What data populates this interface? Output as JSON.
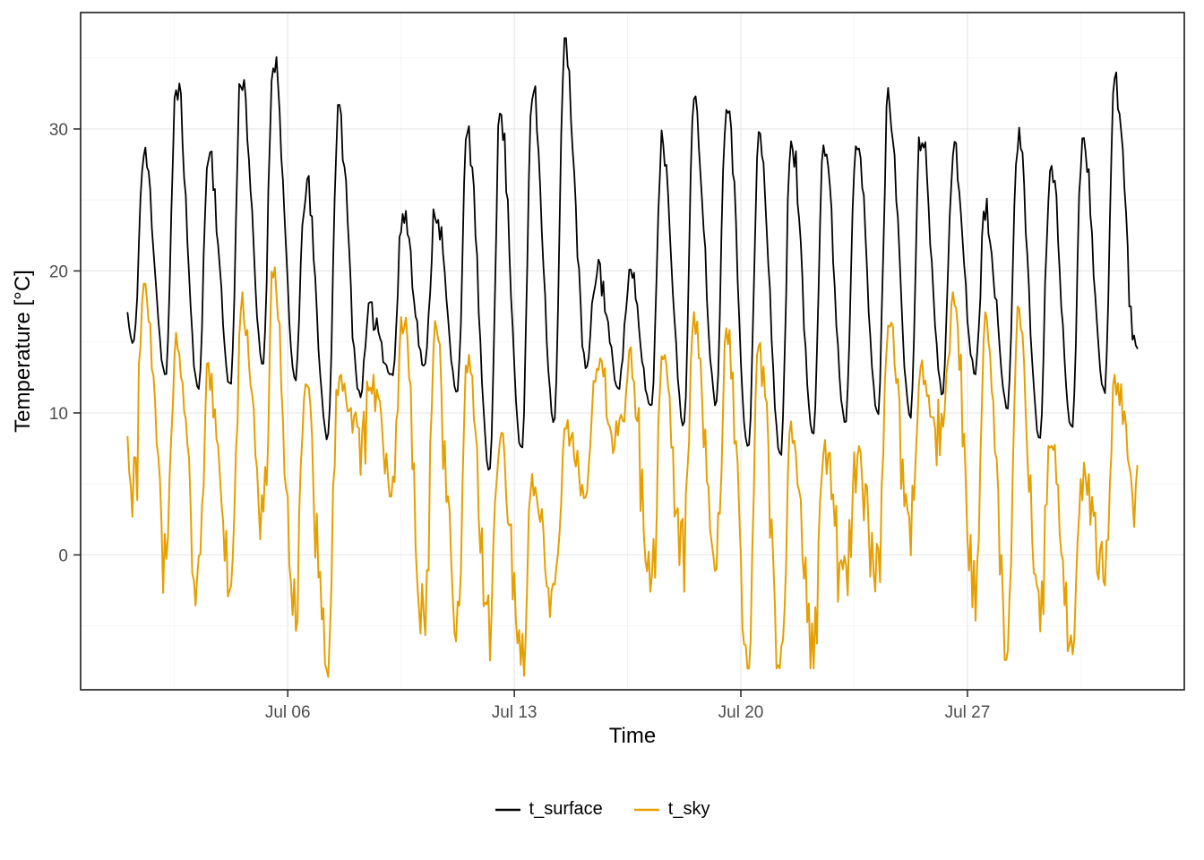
{
  "figure": {
    "background": "#FFFFFF"
  },
  "chart_data": {
    "type": "line",
    "title": "",
    "xlabel": "Time",
    "ylabel": "Temperature [°C]",
    "x_axis": {
      "tick_days": [
        6,
        13,
        20,
        27
      ],
      "tick_labels": [
        "Jul 06",
        "Jul 13",
        "Jul 20",
        "Jul 27"
      ],
      "minor_days": [
        2.5,
        9.5,
        16.5,
        23.5,
        30.5
      ],
      "domain_days": [
        -0.4,
        33.7
      ]
    },
    "y_axis": {
      "ticks": [
        0,
        10,
        20,
        30
      ],
      "tick_labels": [
        "0",
        "10",
        "20",
        "30"
      ],
      "minor": [
        -5,
        5,
        15,
        25,
        35
      ],
      "domain": [
        -9.5,
        38.2
      ]
    },
    "grid": {
      "major_color": "#E7E7E7",
      "minor_color": "#F3F3F3",
      "panel_border": "#1A1A1A",
      "panel_background": "#FFFFFF",
      "tick_color": "#333333",
      "tick_label_color": "#4D4D4D"
    },
    "noise_seed": 11,
    "samples_per_day": 20,
    "data_start_day": 1.05,
    "data_end_day": 32.25,
    "series": [
      {
        "name": "t_surface",
        "color": "#000000",
        "width": 1.8,
        "noise": 0.8,
        "spike_noise": 0,
        "noise_profile": "day",
        "daily": [
          [
            1,
            14.8,
            28.2
          ],
          [
            2,
            12.6,
            33.5
          ],
          [
            3,
            11.6,
            28.5
          ],
          [
            4,
            11.9,
            34.0
          ],
          [
            5,
            13.4,
            35.4
          ],
          [
            6,
            12.4,
            26.2
          ],
          [
            7,
            8.2,
            31.2
          ],
          [
            8,
            11.3,
            17.3
          ],
          [
            9,
            12.6,
            24.2
          ],
          [
            10,
            13.2,
            24.6
          ],
          [
            11,
            11.6,
            29.7
          ],
          [
            12,
            5.9,
            31.0
          ],
          [
            13,
            7.3,
            32.8
          ],
          [
            14,
            9.4,
            35.9
          ],
          [
            15,
            13.1,
            20.3
          ],
          [
            16,
            11.9,
            19.6
          ],
          [
            17,
            10.4,
            29.4
          ],
          [
            18,
            9.1,
            31.8
          ],
          [
            19,
            10.7,
            32.7
          ],
          [
            20,
            7.4,
            29.4
          ],
          [
            21,
            7.0,
            29.6
          ],
          [
            22,
            8.6,
            29.0
          ],
          [
            23,
            9.4,
            30.0
          ],
          [
            24,
            9.9,
            32.4
          ],
          [
            25,
            9.7,
            29.8
          ],
          [
            26,
            11.4,
            28.6
          ],
          [
            27,
            12.9,
            24.6
          ],
          [
            28,
            10.4,
            29.6
          ],
          [
            29,
            8.1,
            27.6
          ],
          [
            30,
            9.0,
            29.8
          ],
          [
            31,
            11.4,
            33.6
          ],
          [
            32,
            14.5,
            17.0
          ]
        ]
      },
      {
        "name": "t_sky",
        "color": "#E69F00",
        "width": 2.0,
        "noise": 2.1,
        "spike_noise": 5.0,
        "noise_profile": "night",
        "daily": [
          [
            1,
            4.6,
            18.6
          ],
          [
            2,
            1.4,
            15.6
          ],
          [
            3,
            -2.2,
            14.0
          ],
          [
            4,
            -1.4,
            18.0
          ],
          [
            5,
            2.8,
            20.4
          ],
          [
            6,
            -3.8,
            13.0
          ],
          [
            7,
            -7.2,
            12.4
          ],
          [
            8,
            7.8,
            12.2
          ],
          [
            9,
            4.8,
            16.6
          ],
          [
            10,
            -5.4,
            16.2
          ],
          [
            11,
            -4.6,
            13.6
          ],
          [
            12,
            -5.2,
            8.2
          ],
          [
            13,
            -7.6,
            5.2
          ],
          [
            14,
            -3.6,
            9.0
          ],
          [
            15,
            4.8,
            13.6
          ],
          [
            16,
            7.8,
            14.2
          ],
          [
            17,
            -1.2,
            13.6
          ],
          [
            18,
            0.4,
            16.6
          ],
          [
            19,
            -0.6,
            16.0
          ],
          [
            20,
            -6.6,
            15.8
          ],
          [
            21,
            -6.2,
            9.0
          ],
          [
            22,
            -6.6,
            7.6
          ],
          [
            23,
            -1.2,
            7.6
          ],
          [
            24,
            -1.6,
            16.6
          ],
          [
            25,
            2.0,
            13.2
          ],
          [
            26,
            7.8,
            18.0
          ],
          [
            27,
            -2.2,
            16.6
          ],
          [
            28,
            -6.0,
            17.0
          ],
          [
            29,
            -4.2,
            8.2
          ],
          [
            30,
            -5.6,
            6.0
          ],
          [
            31,
            -1.2,
            12.2
          ],
          [
            32,
            4.8,
            6.0
          ]
        ]
      }
    ],
    "legend": {
      "position": "bottom",
      "labels": [
        "t_surface",
        "t_sky"
      ]
    }
  }
}
